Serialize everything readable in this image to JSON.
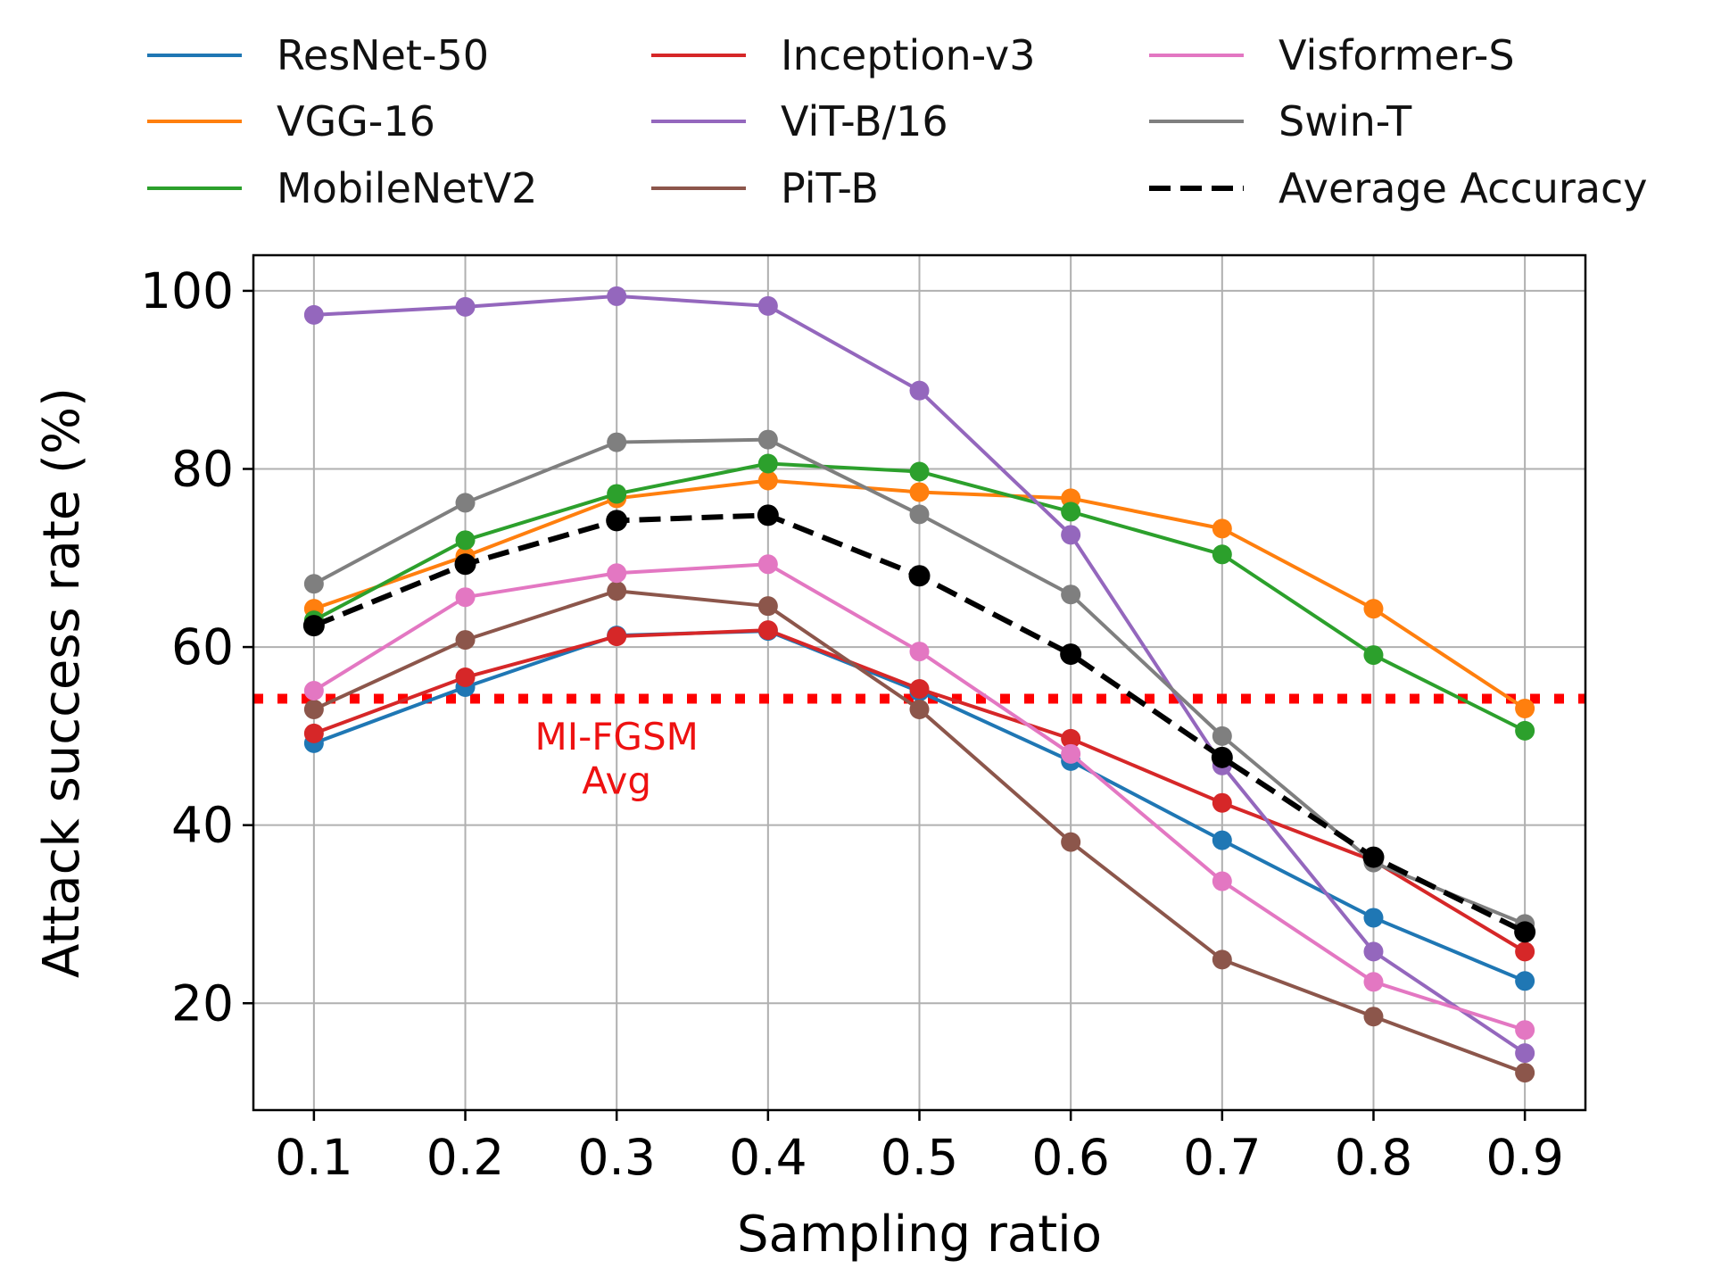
{
  "chart_data": {
    "type": "line",
    "xlabel": "Sampling ratio",
    "ylabel": "Attack success rate (%)",
    "x": [
      0.1,
      0.2,
      0.3,
      0.4,
      0.5,
      0.6,
      0.7,
      0.8,
      0.9
    ],
    "x_tick_labels": [
      "0.1",
      "0.2",
      "0.3",
      "0.4",
      "0.5",
      "0.6",
      "0.7",
      "0.8",
      "0.9"
    ],
    "y_ticks": [
      20,
      40,
      60,
      80,
      100
    ],
    "y_tick_labels": [
      "20",
      "40",
      "60",
      "80",
      "100"
    ],
    "xlim": [
      0.06,
      0.94
    ],
    "ylim": [
      8,
      104
    ],
    "grid": true,
    "legend_position": "top",
    "series": [
      {
        "name": "ResNet-50",
        "color": "#1f77b4",
        "values": [
          49.2,
          55.5,
          61.3,
          61.8,
          55.0,
          47.2,
          38.3,
          29.6,
          22.5
        ]
      },
      {
        "name": "VGG-16",
        "color": "#ff7f0e",
        "values": [
          64.3,
          70.2,
          76.7,
          78.7,
          77.4,
          76.7,
          73.3,
          64.3,
          53.1
        ]
      },
      {
        "name": "MobileNetV2",
        "color": "#2ca02c",
        "values": [
          63.0,
          72.0,
          77.2,
          80.6,
          79.7,
          75.2,
          70.4,
          59.1,
          50.6
        ]
      },
      {
        "name": "Inception-v3",
        "color": "#d62728",
        "values": [
          50.3,
          56.6,
          61.2,
          61.9,
          55.3,
          49.7,
          42.5,
          36.0,
          25.8
        ]
      },
      {
        "name": "ViT-B/16",
        "color": "#9467bd",
        "values": [
          97.3,
          98.2,
          99.4,
          98.3,
          88.8,
          72.6,
          46.7,
          25.8,
          14.4
        ]
      },
      {
        "name": "PiT-B",
        "color": "#8c564b",
        "values": [
          53.0,
          60.8,
          66.3,
          64.6,
          53.0,
          38.1,
          24.9,
          18.5,
          12.2
        ]
      },
      {
        "name": "Visformer-S",
        "color": "#e377c2",
        "values": [
          55.1,
          65.6,
          68.3,
          69.3,
          59.5,
          48.0,
          33.7,
          22.4,
          17.0
        ]
      },
      {
        "name": "Swin-T",
        "color": "#7f7f7f",
        "values": [
          67.1,
          76.2,
          83.0,
          83.3,
          74.9,
          65.9,
          50.0,
          35.8,
          28.9
        ]
      },
      {
        "name": "Average Accuracy",
        "color": "#000000",
        "dashed": true,
        "values": [
          62.4,
          69.3,
          74.2,
          74.8,
          68.0,
          59.2,
          47.6,
          36.4,
          28.0
        ]
      }
    ],
    "reference_line": {
      "value": 54.2,
      "color": "#ff0000",
      "style": "dotted"
    },
    "annotations": [
      {
        "text": "MI-FGSM",
        "x": 0.3,
        "y": 48.5
      },
      {
        "text": "Avg",
        "x": 0.3,
        "y": 43.5
      }
    ]
  }
}
